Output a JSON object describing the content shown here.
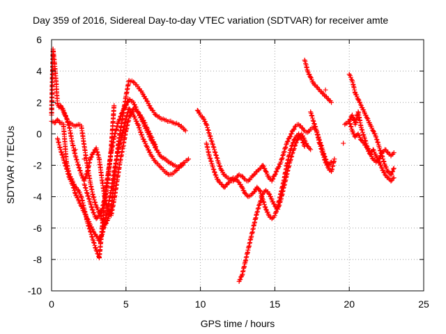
{
  "chart_data": {
    "type": "scatter",
    "title": "Day 359 of 2016, Sidereal Day-to-day VTEC variation (SDTVAR) for receiver amte",
    "xlabel": "GPS time / hours",
    "ylabel": "SDTVAR / TECUs",
    "xlim": [
      0,
      25
    ],
    "ylim": [
      -10,
      6
    ],
    "xticks": [
      0,
      5,
      10,
      15,
      20,
      25
    ],
    "yticks": [
      -10,
      -8,
      -6,
      -4,
      -2,
      0,
      2,
      4,
      6
    ],
    "grid": true,
    "marker": "plus",
    "color": "#ff0000",
    "series": [
      {
        "x": [
          0.0,
          0.1,
          0.15,
          0.2,
          0.25,
          0.3,
          0.35,
          0.4,
          0.5,
          0.6,
          0.7,
          0.8,
          0.9,
          1.0,
          1.1,
          1.2,
          1.4,
          1.6,
          1.8,
          2.0,
          2.2,
          2.4,
          2.6,
          2.8,
          3.0,
          3.2,
          3.4,
          3.6,
          3.8,
          4.0,
          4.2,
          4.5,
          4.8,
          5.0,
          5.2,
          5.5,
          5.8,
          6.1,
          6.4,
          6.7,
          7.0,
          7.3,
          7.6,
          7.9,
          8.2,
          8.5,
          8.8,
          9.0
        ],
        "y": [
          1.2,
          5.4,
          5.0,
          4.5,
          4.0,
          3.4,
          2.6,
          1.9,
          1.7,
          1.8,
          1.6,
          1.4,
          1.2,
          1.0,
          0.8,
          0.7,
          0.6,
          0.5,
          0.6,
          0.5,
          -0.8,
          -2.0,
          -3.1,
          -4.0,
          -4.6,
          -5.0,
          -5.5,
          -5.8,
          -5.4,
          -4.8,
          -3.0,
          -0.5,
          1.2,
          2.4,
          3.4,
          3.3,
          3.0,
          2.6,
          2.1,
          1.6,
          1.2,
          1.0,
          0.9,
          0.8,
          0.7,
          0.6,
          0.4,
          0.2
        ]
      },
      {
        "x": [
          0.0,
          0.2,
          0.4,
          0.6,
          0.8,
          1.0,
          1.2,
          1.4,
          1.6,
          1.8,
          2.0,
          2.2,
          2.4,
          2.6,
          2.8,
          3.0,
          3.2,
          3.4,
          3.6,
          3.8,
          4.0,
          4.2,
          4.5,
          4.8,
          5.0,
          5.2,
          5.5,
          5.8,
          6.1,
          6.4,
          6.7,
          7.0,
          7.3,
          7.6,
          7.9,
          8.2,
          8.5,
          8.8,
          9.2
        ],
        "y": [
          0.8,
          0.7,
          0.9,
          0.7,
          0.6,
          -1.8,
          -2.6,
          -3.0,
          -3.4,
          -3.6,
          -4.0,
          -4.8,
          -5.6,
          -6.2,
          -6.8,
          -7.4,
          -7.9,
          -6.0,
          -4.0,
          -2.5,
          -1.2,
          -0.2,
          0.8,
          1.5,
          1.8,
          2.2,
          2.0,
          1.4,
          0.8,
          0.2,
          -0.4,
          -0.9,
          -1.4,
          -1.6,
          -1.8,
          -2.0,
          -2.1,
          -1.9,
          -1.6
        ]
      },
      {
        "x": [
          0.4,
          0.6,
          0.8,
          1.0,
          1.2,
          1.4,
          1.6,
          1.8,
          2.0,
          2.2,
          2.4,
          2.6,
          2.8,
          3.0,
          3.2,
          3.4,
          3.6,
          3.8,
          4.0,
          4.2,
          4.5,
          4.8,
          5.0,
          5.2,
          5.5,
          5.8,
          6.1,
          6.4,
          6.7,
          7.0,
          7.3,
          7.6,
          7.9,
          8.2,
          8.5,
          8.8
        ],
        "y": [
          -0.3,
          -1.0,
          -1.6,
          -2.2,
          -2.8,
          -3.2,
          -3.8,
          -4.2,
          -4.6,
          -5.0,
          -5.4,
          -5.8,
          -6.2,
          -6.5,
          -6.8,
          -6.4,
          -5.6,
          -4.6,
          -3.6,
          -2.4,
          -1.0,
          0.2,
          1.0,
          1.6,
          1.2,
          0.6,
          -0.2,
          -0.8,
          -1.4,
          -1.8,
          -2.1,
          -2.4,
          -2.6,
          -2.5,
          -2.2,
          -2.0
        ]
      },
      {
        "x": [
          0.6,
          0.8,
          1.0,
          1.2,
          1.4,
          1.6,
          1.8,
          2.0,
          2.2,
          2.4,
          2.6,
          2.8,
          3.0,
          3.2,
          3.4,
          3.6,
          3.8,
          4.0,
          4.2,
          4.4,
          4.6,
          4.8,
          5.0,
          5.2,
          5.5,
          5.8,
          6.1,
          6.4,
          6.7,
          7.0
        ],
        "y": [
          1.8,
          1.5,
          1.0,
          0.4,
          -0.6,
          -1.4,
          -2.0,
          -2.6,
          -3.0,
          -2.4,
          -1.6,
          -1.2,
          -0.9,
          -1.6,
          -3.0,
          -4.2,
          -4.8,
          -5.2,
          -4.2,
          -3.0,
          -1.8,
          -0.8,
          0.2,
          1.0,
          1.6,
          1.4,
          1.0,
          0.4,
          -0.2,
          -0.8
        ]
      },
      {
        "x": [
          2.2,
          2.4,
          2.6,
          2.8,
          3.0,
          3.2,
          3.4,
          3.6,
          3.8,
          4.0,
          4.2
        ],
        "y": [
          -3.2,
          -3.8,
          -4.4,
          -5.0,
          -5.4,
          -5.2,
          -4.8,
          -4.0,
          -2.8,
          -1.0,
          1.8
        ]
      },
      {
        "x": [
          9.8,
          10.0,
          10.2,
          10.4,
          10.6,
          10.8,
          11.0,
          11.2,
          11.4,
          11.6,
          11.8,
          12.0,
          12.2,
          12.4,
          12.6,
          12.8,
          13.0,
          13.2,
          13.4,
          13.6,
          13.8,
          14.0,
          14.2,
          14.4,
          14.6,
          14.8,
          15.0,
          15.2,
          15.4,
          15.6,
          15.8,
          16.0,
          16.2,
          16.4,
          16.6,
          16.8,
          17.0,
          17.2,
          17.4,
          17.6,
          17.8,
          18.0,
          18.2,
          18.4,
          18.6,
          18.8
        ],
        "y": [
          1.5,
          1.2,
          1.0,
          0.6,
          0.0,
          -0.6,
          -1.2,
          -1.8,
          -2.3,
          -2.6,
          -2.8,
          -2.9,
          -3.0,
          -2.8,
          -2.6,
          -2.7,
          -2.9,
          -3.0,
          -2.8,
          -2.6,
          -2.4,
          -2.2,
          -2.0,
          -2.4,
          -2.8,
          -3.0,
          -2.6,
          -2.2,
          -1.8,
          -1.2,
          -0.6,
          -0.2,
          0.2,
          0.5,
          0.6,
          0.4,
          0.2,
          0.1,
          0.3,
          0.4,
          0.2,
          -0.4,
          -1.0,
          -1.6,
          -2.0,
          -1.8
        ]
      },
      {
        "x": [
          10.4,
          10.6,
          10.8,
          11.0,
          11.2,
          11.4,
          11.6,
          11.8,
          12.0,
          12.2,
          12.4,
          12.6,
          12.8,
          13.0,
          13.2,
          13.4,
          13.6,
          13.8,
          14.0,
          14.2,
          14.4,
          14.6,
          14.8,
          15.0,
          15.2,
          15.4,
          15.6,
          15.8,
          16.0,
          16.2,
          16.4,
          16.6,
          16.8,
          17.0
        ],
        "y": [
          -0.6,
          -1.4,
          -2.0,
          -2.6,
          -3.0,
          -3.2,
          -3.4,
          -3.2,
          -3.0,
          -2.8,
          -2.9,
          -3.1,
          -3.4,
          -3.8,
          -4.0,
          -3.9,
          -3.7,
          -3.4,
          -3.6,
          -4.2,
          -4.8,
          -5.2,
          -5.4,
          -5.2,
          -4.6,
          -3.8,
          -3.0,
          -2.0,
          -1.2,
          -0.6,
          -0.2,
          0.0,
          -0.3,
          -0.8
        ]
      },
      {
        "x": [
          12.6,
          12.8,
          13.0,
          13.2,
          13.4,
          13.6,
          13.8,
          14.0,
          14.2,
          14.4,
          14.6,
          14.8,
          15.0,
          15.2,
          15.4,
          15.6,
          15.8,
          16.0,
          16.2,
          16.4,
          16.6,
          16.8,
          17.0,
          17.2,
          17.4
        ],
        "y": [
          -9.4,
          -9.0,
          -8.2,
          -7.4,
          -6.6,
          -5.8,
          -5.0,
          -4.4,
          -3.8,
          -3.6,
          -3.8,
          -4.2,
          -4.6,
          -4.8,
          -4.2,
          -3.4,
          -2.6,
          -1.8,
          -1.2,
          -0.6,
          -0.2,
          0.0,
          -0.4,
          -0.8,
          -1.0
        ]
      },
      {
        "x": [
          17.0,
          17.1,
          17.2,
          17.4,
          17.6,
          17.8,
          18.0,
          18.2,
          18.4,
          18.6,
          18.8
        ],
        "y": [
          4.7,
          4.4,
          4.0,
          3.6,
          3.2,
          3.0,
          2.8,
          2.6,
          2.4,
          2.2,
          2.0
        ]
      },
      {
        "x": [
          17.4,
          17.6,
          17.8,
          18.0,
          18.2,
          18.4,
          18.6,
          18.8,
          19.0
        ],
        "y": [
          1.4,
          0.8,
          0.2,
          -0.6,
          -1.2,
          -1.8,
          -2.2,
          -2.4,
          -1.6
        ]
      },
      {
        "x": [
          20.0,
          20.1,
          20.2,
          20.3,
          20.4,
          20.6,
          20.8,
          21.0,
          21.2,
          21.4,
          21.6,
          21.8,
          22.0,
          22.2,
          22.4,
          22.6,
          22.8,
          23.0
        ],
        "y": [
          3.8,
          3.6,
          3.4,
          3.0,
          2.6,
          2.2,
          1.8,
          1.4,
          1.0,
          0.6,
          0.2,
          -0.2,
          -0.8,
          -1.4,
          -2.0,
          -2.4,
          -2.6,
          -2.2
        ]
      },
      {
        "x": [
          20.0,
          20.2,
          20.4,
          20.6,
          20.8,
          21.0,
          21.2,
          21.4,
          21.6,
          21.8,
          22.0,
          22.2,
          22.4,
          22.6,
          22.8,
          23.0
        ],
        "y": [
          0.8,
          1.2,
          0.6,
          1.4,
          0.4,
          -0.2,
          -0.8,
          -1.2,
          -1.0,
          -1.4,
          -1.8,
          -2.2,
          -2.6,
          -2.8,
          -3.0,
          -2.8
        ]
      },
      {
        "x": [
          19.7,
          20.0,
          20.2,
          20.4,
          20.6,
          20.8,
          21.0,
          21.2,
          21.4,
          21.6,
          21.8,
          22.0,
          22.2,
          22.4,
          22.6,
          22.8,
          23.0
        ],
        "y": [
          0.6,
          0.8,
          0.2,
          -0.2,
          0.0,
          -0.4,
          -0.6,
          -0.9,
          -1.3,
          -1.6,
          -1.8,
          -1.6,
          -1.2,
          -1.0,
          -1.2,
          -1.4,
          -1.2
        ]
      },
      {
        "x": [
          19.6,
          18.4,
          2.2,
          1.6
        ],
        "y": [
          -0.6,
          2.8,
          -1.6,
          -1.0
        ]
      }
    ]
  }
}
